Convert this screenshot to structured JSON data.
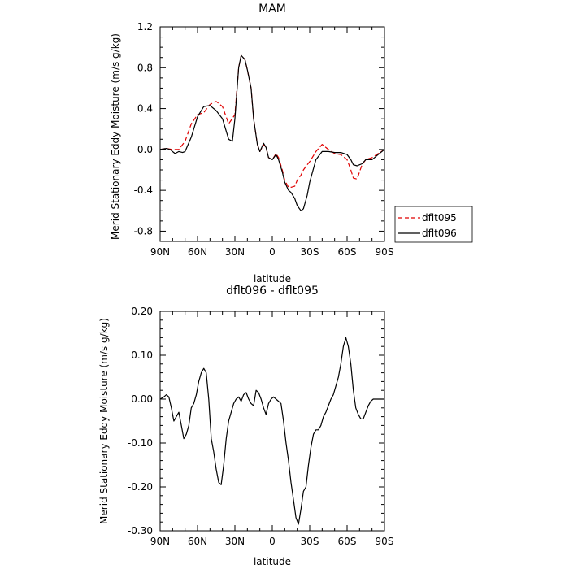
{
  "chart_data": [
    {
      "type": "line",
      "title": "MAM",
      "xlabel": "latitude",
      "ylabel": "Merid Stationary Eddy Moisture (m/s g/kg)",
      "xlim": [
        90,
        -90
      ],
      "ylim": [
        -0.9,
        1.2
      ],
      "x_ticks": [
        90,
        60,
        30,
        0,
        -30,
        -60,
        -90
      ],
      "x_tick_labels": [
        "90N",
        "60N",
        "30N",
        "0",
        "30S",
        "60S",
        "90S"
      ],
      "y_ticks": [
        1.2,
        0.8,
        0.4,
        0.0,
        -0.4,
        -0.8
      ],
      "y_tick_labels": [
        "1.2",
        "0.8",
        "0.4",
        "0.0",
        "-0.4",
        "-0.8"
      ],
      "legend_position": "right",
      "series": [
        {
          "name": "dflt095",
          "color": "#e00000",
          "dash": true,
          "x": [
            90,
            85,
            80,
            75,
            70,
            65,
            60,
            55,
            50,
            45,
            40,
            35,
            30,
            27,
            25,
            22,
            20,
            17,
            15,
            12,
            10,
            7,
            5,
            3,
            0,
            -3,
            -5,
            -8,
            -10,
            -13,
            -15,
            -18,
            -20,
            -23,
            -25,
            -28,
            -30,
            -35,
            -40,
            -45,
            -50,
            -55,
            -60,
            -63,
            -65,
            -68,
            -70,
            -72,
            -75,
            -80,
            -85,
            -90
          ],
          "y": [
            0.0,
            0.01,
            0.0,
            0.0,
            0.08,
            0.25,
            0.34,
            0.36,
            0.44,
            0.47,
            0.42,
            0.25,
            0.34,
            0.8,
            0.92,
            0.88,
            0.78,
            0.6,
            0.3,
            0.05,
            -0.02,
            0.05,
            0.02,
            -0.08,
            -0.1,
            -0.04,
            -0.08,
            -0.2,
            -0.3,
            -0.37,
            -0.37,
            -0.36,
            -0.3,
            -0.25,
            -0.2,
            -0.15,
            -0.12,
            -0.02,
            0.05,
            0.0,
            -0.04,
            -0.05,
            -0.1,
            -0.2,
            -0.28,
            -0.29,
            -0.22,
            -0.15,
            -0.1,
            -0.08,
            -0.04,
            0.0
          ]
        },
        {
          "name": "dflt096",
          "color": "#000000",
          "dash": false,
          "x": [
            90,
            85,
            82,
            80,
            78,
            75,
            72,
            70,
            65,
            60,
            55,
            50,
            45,
            40,
            35,
            32,
            30,
            27,
            25,
            22,
            20,
            17,
            15,
            12,
            10,
            7,
            5,
            3,
            0,
            -3,
            -5,
            -8,
            -10,
            -13,
            -15,
            -18,
            -20,
            -23,
            -25,
            -28,
            -30,
            -35,
            -40,
            -45,
            -50,
            -55,
            -60,
            -63,
            -65,
            -68,
            -70,
            -72,
            -75,
            -80,
            -85,
            -90
          ],
          "y": [
            0.0,
            0.01,
            0.0,
            -0.02,
            -0.04,
            -0.02,
            -0.03,
            -0.02,
            0.12,
            0.32,
            0.42,
            0.43,
            0.38,
            0.3,
            0.1,
            0.08,
            0.3,
            0.8,
            0.92,
            0.88,
            0.78,
            0.6,
            0.3,
            0.05,
            -0.02,
            0.06,
            0.02,
            -0.08,
            -0.1,
            -0.05,
            -0.1,
            -0.22,
            -0.32,
            -0.4,
            -0.42,
            -0.48,
            -0.55,
            -0.6,
            -0.58,
            -0.45,
            -0.32,
            -0.1,
            -0.02,
            -0.02,
            -0.03,
            -0.03,
            -0.05,
            -0.1,
            -0.15,
            -0.16,
            -0.15,
            -0.14,
            -0.1,
            -0.1,
            -0.05,
            0.0
          ]
        }
      ]
    },
    {
      "type": "line",
      "title": "dflt096 - dflt095",
      "xlabel": "latitude",
      "ylabel": "Merid Stationary Eddy Moisture (m/s g/kg)",
      "xlim": [
        90,
        -90
      ],
      "ylim": [
        -0.3,
        0.2
      ],
      "x_ticks": [
        90,
        60,
        30,
        0,
        -30,
        -60,
        -90
      ],
      "x_tick_labels": [
        "90N",
        "60N",
        "30N",
        "0",
        "30S",
        "60S",
        "90S"
      ],
      "y_ticks": [
        0.2,
        0.1,
        0.0,
        -0.1,
        -0.2,
        -0.3
      ],
      "y_tick_labels": [
        "0.20",
        "0.10",
        "0.00",
        "-0.10",
        "-0.20",
        "-0.30"
      ],
      "series": [
        {
          "color": "#000000",
          "dash": false,
          "x": [
            90,
            87,
            85,
            83,
            81,
            79,
            77,
            75,
            73,
            71,
            69,
            67,
            65,
            63,
            61,
            59,
            57,
            55,
            53,
            51,
            49,
            47,
            45,
            43,
            41,
            39,
            37,
            35,
            33,
            31,
            29,
            27,
            25,
            23,
            21,
            19,
            17,
            15,
            13,
            11,
            9,
            7,
            5,
            3,
            1,
            -1,
            -3,
            -5,
            -7,
            -9,
            -11,
            -13,
            -15,
            -17,
            -19,
            -21,
            -23,
            -25,
            -27,
            -29,
            -31,
            -33,
            -35,
            -37,
            -39,
            -41,
            -43,
            -45,
            -47,
            -49,
            -51,
            -53,
            -55,
            -57,
            -59,
            -61,
            -63,
            -65,
            -67,
            -69,
            -71,
            -73,
            -75,
            -77,
            -79,
            -81,
            -83,
            -85,
            -87,
            -89,
            -90
          ],
          "y": [
            0.0,
            0.005,
            0.01,
            0.005,
            -0.02,
            -0.05,
            -0.04,
            -0.03,
            -0.06,
            -0.09,
            -0.08,
            -0.06,
            -0.02,
            -0.01,
            0.01,
            0.04,
            0.06,
            0.07,
            0.06,
            0.0,
            -0.09,
            -0.12,
            -0.16,
            -0.19,
            -0.195,
            -0.15,
            -0.09,
            -0.05,
            -0.03,
            -0.01,
            0.0,
            0.005,
            -0.005,
            0.01,
            0.015,
            0.0,
            -0.01,
            -0.015,
            0.02,
            0.015,
            0.0,
            -0.02,
            -0.035,
            -0.01,
            0.0,
            0.005,
            0.0,
            -0.005,
            -0.01,
            -0.05,
            -0.1,
            -0.14,
            -0.19,
            -0.23,
            -0.27,
            -0.285,
            -0.25,
            -0.21,
            -0.2,
            -0.15,
            -0.11,
            -0.08,
            -0.07,
            -0.07,
            -0.06,
            -0.04,
            -0.03,
            -0.015,
            0.0,
            0.01,
            0.03,
            0.05,
            0.08,
            0.12,
            0.14,
            0.12,
            0.08,
            0.02,
            -0.02,
            -0.035,
            -0.045,
            -0.045,
            -0.03,
            -0.015,
            -0.005,
            0.0,
            0.0,
            0.0,
            0.0,
            0.0,
            0.0
          ]
        }
      ]
    }
  ]
}
